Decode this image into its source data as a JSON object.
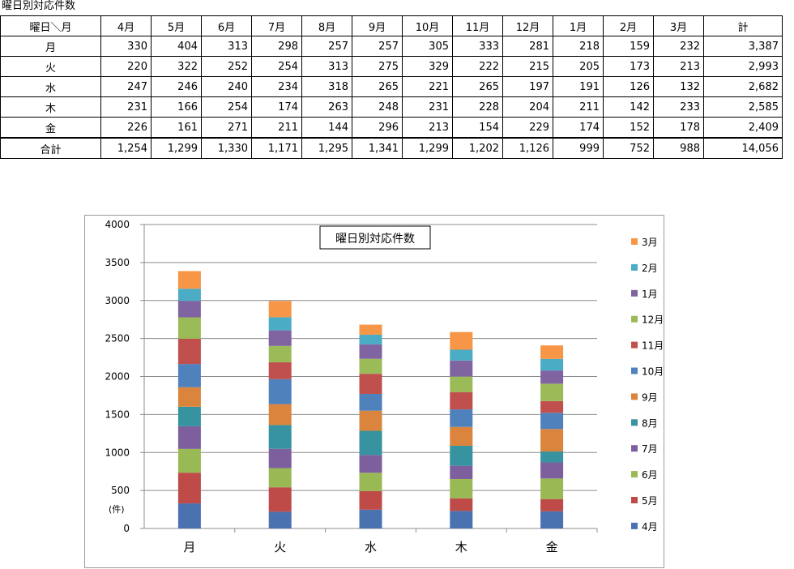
{
  "page": {
    "title": "曜日別対応件数"
  },
  "table": {
    "corner": "曜日＼月",
    "headers": [
      "4月",
      "5月",
      "6月",
      "7月",
      "8月",
      "9月",
      "10月",
      "11月",
      "12月",
      "1月",
      "2月",
      "3月",
      "計"
    ],
    "rows": [
      {
        "label": "月",
        "cells": [
          "330",
          "404",
          "313",
          "298",
          "257",
          "257",
          "305",
          "333",
          "281",
          "218",
          "159",
          "232",
          "3,387"
        ]
      },
      {
        "label": "火",
        "cells": [
          "220",
          "322",
          "252",
          "254",
          "313",
          "275",
          "329",
          "222",
          "215",
          "205",
          "173",
          "213",
          "2,993"
        ]
      },
      {
        "label": "水",
        "cells": [
          "247",
          "246",
          "240",
          "234",
          "318",
          "265",
          "221",
          "265",
          "197",
          "191",
          "126",
          "132",
          "2,682"
        ]
      },
      {
        "label": "木",
        "cells": [
          "231",
          "166",
          "254",
          "174",
          "263",
          "248",
          "231",
          "228",
          "204",
          "211",
          "142",
          "233",
          "2,585"
        ]
      },
      {
        "label": "金",
        "cells": [
          "226",
          "161",
          "271",
          "211",
          "144",
          "296",
          "213",
          "154",
          "229",
          "174",
          "152",
          "178",
          "2,409"
        ]
      }
    ],
    "total": {
      "label": "合計",
      "cells": [
        "1,254",
        "1,299",
        "1,330",
        "1,171",
        "1,295",
        "1,341",
        "1,299",
        "1,202",
        "1,126",
        "999",
        "752",
        "988",
        "14,056"
      ]
    }
  },
  "chart_data": {
    "type": "bar",
    "stacked": true,
    "title": "曜日別対応件数",
    "unit_label": "(件)",
    "categories": [
      "月",
      "火",
      "水",
      "木",
      "金"
    ],
    "ylim": [
      0,
      4000
    ],
    "yticks": [
      "0",
      "500",
      "1000",
      "1500",
      "2000",
      "2500",
      "3000",
      "3500",
      "4000"
    ],
    "grid": true,
    "legend_position": "right",
    "series": [
      {
        "name": "4月",
        "color": "#4a72b0",
        "values": [
          330,
          220,
          247,
          231,
          226
        ]
      },
      {
        "name": "5月",
        "color": "#be4b48",
        "values": [
          404,
          322,
          246,
          166,
          161
        ]
      },
      {
        "name": "6月",
        "color": "#98b954",
        "values": [
          313,
          252,
          240,
          254,
          271
        ]
      },
      {
        "name": "7月",
        "color": "#7d5f9e",
        "values": [
          298,
          254,
          234,
          174,
          211
        ]
      },
      {
        "name": "8月",
        "color": "#36939f",
        "values": [
          257,
          313,
          318,
          263,
          144
        ]
      },
      {
        "name": "9月",
        "color": "#db843d",
        "values": [
          257,
          275,
          265,
          248,
          296
        ]
      },
      {
        "name": "10月",
        "color": "#4f81bd",
        "values": [
          305,
          329,
          221,
          231,
          213
        ]
      },
      {
        "name": "11月",
        "color": "#c0504d",
        "values": [
          333,
          222,
          265,
          228,
          154
        ]
      },
      {
        "name": "12月",
        "color": "#9bbb59",
        "values": [
          281,
          215,
          197,
          204,
          229
        ]
      },
      {
        "name": "1月",
        "color": "#8064a2",
        "values": [
          218,
          205,
          191,
          211,
          174
        ]
      },
      {
        "name": "2月",
        "color": "#4bacc6",
        "values": [
          159,
          173,
          126,
          142,
          152
        ]
      },
      {
        "name": "3月",
        "color": "#f79646",
        "values": [
          232,
          213,
          132,
          233,
          178
        ]
      }
    ]
  }
}
